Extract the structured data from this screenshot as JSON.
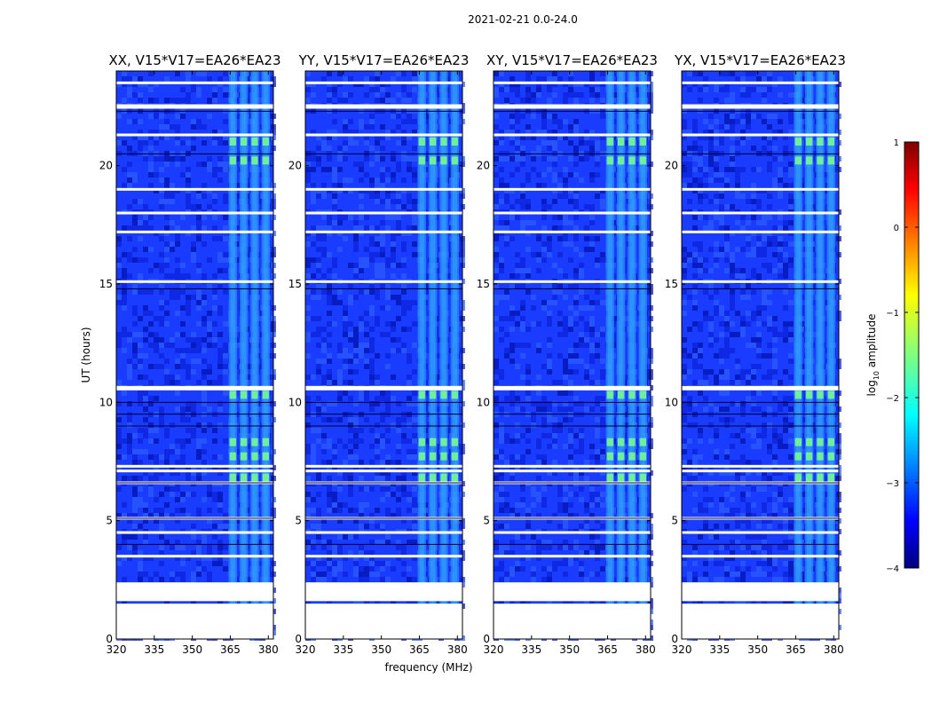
{
  "chart_data": [
    {
      "type": "heatmap",
      "suptitle": "2021-02-21 0.0-24.0",
      "title": "XX, V15*V17=EA26*EA23",
      "xlabel": "",
      "ylabel": "UT (hours)",
      "xlim": [
        320,
        382
      ],
      "ylim": [
        0,
        24
      ],
      "xticks": [
        320,
        335,
        350,
        365,
        380
      ],
      "yticks": [
        0,
        5,
        10,
        15,
        20
      ],
      "value_label": "log10 amplitude",
      "band_freq_range_mhz": [
        364,
        382
      ],
      "flagged_ut_hours": [
        1.4,
        2.3,
        3.5,
        4.5,
        5.1,
        6.6,
        7.1,
        7.3,
        10.6,
        15.1,
        17.2,
        18.0,
        19.0,
        21.3,
        22.5,
        23.5
      ],
      "bright_ut_hours": [
        6.8,
        7.7,
        8.3,
        10.3,
        20.2,
        21.0
      ]
    },
    {
      "type": "heatmap",
      "title": "YY, V15*V17=EA26*EA23",
      "xlabel": "frequency (MHz)",
      "ylabel": "",
      "xlim": [
        320,
        382
      ],
      "ylim": [
        0,
        24
      ],
      "xticks": [
        320,
        335,
        350,
        365,
        380
      ],
      "yticks": [
        0,
        5,
        10,
        15,
        20
      ],
      "value_label": "log10 amplitude",
      "band_freq_range_mhz": [
        364,
        382
      ],
      "flagged_ut_hours": [
        1.4,
        2.3,
        3.5,
        4.5,
        5.1,
        6.6,
        7.1,
        7.3,
        10.6,
        15.1,
        17.2,
        18.0,
        19.0,
        21.3,
        22.5,
        23.5
      ],
      "bright_ut_hours": [
        6.8,
        7.7,
        8.3,
        10.3,
        20.2,
        21.0
      ]
    },
    {
      "type": "heatmap",
      "title": "XY, V15*V17=EA26*EA23",
      "xlabel": "",
      "ylabel": "",
      "xlim": [
        320,
        382
      ],
      "ylim": [
        0,
        24
      ],
      "xticks": [
        320,
        335,
        350,
        365,
        380
      ],
      "yticks": [
        0,
        5,
        10,
        15,
        20
      ],
      "value_label": "log10 amplitude",
      "band_freq_range_mhz": [
        364,
        382
      ],
      "flagged_ut_hours": [
        1.4,
        2.3,
        3.5,
        4.5,
        5.1,
        6.6,
        7.1,
        7.3,
        10.6,
        15.1,
        17.2,
        18.0,
        19.0,
        21.3,
        22.5,
        23.5
      ],
      "bright_ut_hours": [
        6.8,
        7.7,
        8.3,
        10.3,
        20.2,
        21.0
      ]
    },
    {
      "type": "heatmap",
      "title": "YX, V15*V17=EA26*EA23",
      "xlabel": "",
      "ylabel": "",
      "xlim": [
        320,
        382
      ],
      "ylim": [
        0,
        24
      ],
      "xticks": [
        320,
        335,
        350,
        365,
        380
      ],
      "yticks": [
        0,
        5,
        10,
        15,
        20
      ],
      "value_label": "log10 amplitude",
      "band_freq_range_mhz": [
        364,
        382
      ],
      "flagged_ut_hours": [
        1.4,
        2.3,
        3.5,
        4.5,
        5.1,
        6.6,
        7.1,
        7.3,
        10.6,
        15.1,
        17.2,
        18.0,
        19.0,
        21.3,
        22.5,
        23.5
      ],
      "bright_ut_hours": [
        6.8,
        7.7,
        8.3,
        10.3,
        20.2,
        21.0
      ]
    }
  ],
  "colorbar": {
    "label": "log10 amplitude",
    "label_main": "log",
    "label_sub": "10",
    "label_tail": " amplitude",
    "range": [
      -4,
      1
    ],
    "ticks": [
      1,
      0,
      -1,
      -2,
      -3,
      -4
    ],
    "tick_labels": [
      "1",
      "0",
      "−1",
      "−2",
      "−3",
      "−4"
    ],
    "colormap": "jet"
  }
}
